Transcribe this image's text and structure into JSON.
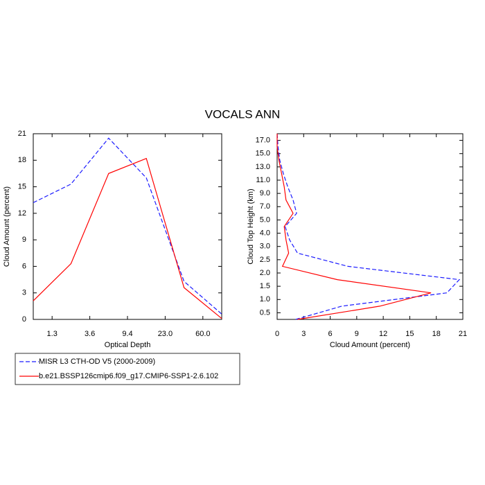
{
  "title": "VOCALS ANN",
  "chart_data": [
    {
      "type": "line",
      "orientation": "vertical",
      "xlabel": "Optical Depth",
      "ylabel": "Cloud Amount (percent)",
      "categories": [
        null,
        null,
        null,
        null,
        null,
        null
      ],
      "xlim": [
        0,
        5
      ],
      "xticks": [
        {
          "value": 0.5,
          "label": "1.3"
        },
        {
          "value": 1.5,
          "label": "3.6"
        },
        {
          "value": 2.5,
          "label": "9.4"
        },
        {
          "value": 3.5,
          "label": "23.0"
        },
        {
          "value": 4.5,
          "label": "60.0"
        }
      ],
      "ylim": [
        0,
        21
      ],
      "yticks": [
        0,
        3,
        6,
        9,
        12,
        15,
        18,
        21
      ],
      "series": [
        {
          "name": "MISR L3 CTH-OD V5 (2000-2009)",
          "color": "#1a1aff",
          "linestyle": "dashed",
          "values": [
            13.2,
            15.3,
            20.5,
            16.0,
            4.3,
            0.6
          ]
        },
        {
          "name": "b.e21.BSSP126cmip6.f09_g17.CMIP6-SSP1-2.6.102",
          "color": "#ff0000",
          "linestyle": "solid",
          "values": [
            2.1,
            6.3,
            16.5,
            18.2,
            3.6,
            0.1
          ]
        }
      ]
    },
    {
      "type": "line",
      "orientation": "horizontal",
      "xlabel": "Cloud Amount (percent)",
      "ylabel": "Cloud Top Height (km)",
      "categories": [
        null,
        null,
        null,
        null,
        null,
        null,
        null,
        null,
        null,
        null,
        null,
        null,
        null,
        null,
        null
      ],
      "xlim": [
        0,
        21
      ],
      "xticks": [
        0,
        3,
        6,
        9,
        12,
        15,
        18,
        21
      ],
      "ylim": [
        0,
        14
      ],
      "yticks": [
        {
          "value": 0.5,
          "label": "0.5"
        },
        {
          "value": 1.5,
          "label": "1.0"
        },
        {
          "value": 2.5,
          "label": "1.5"
        },
        {
          "value": 3.5,
          "label": "2.0"
        },
        {
          "value": 4.5,
          "label": "2.5"
        },
        {
          "value": 5.5,
          "label": "3.0"
        },
        {
          "value": 6.5,
          "label": "4.0"
        },
        {
          "value": 7.5,
          "label": "5.0"
        },
        {
          "value": 8.5,
          "label": "7.0"
        },
        {
          "value": 9.5,
          "label": "9.0"
        },
        {
          "value": 10.5,
          "label": "11.0"
        },
        {
          "value": 11.5,
          "label": "13.0"
        },
        {
          "value": 12.5,
          "label": "15.0"
        },
        {
          "value": 13.5,
          "label": "17.0"
        }
      ],
      "series": [
        {
          "color": "#1a1aff",
          "linestyle": "dashed",
          "values": [
            2.1,
            7.3,
            19.2,
            20.6,
            8.0,
            2.3,
            1.4,
            0.9,
            2.2,
            1.8,
            1.2,
            0.7,
            0.3,
            0.1,
            0.0
          ]
        },
        {
          "color": "#ff0000",
          "linestyle": "solid",
          "values": [
            2.3,
            11.6,
            17.4,
            6.8,
            0.6,
            1.3,
            1.0,
            0.8,
            1.8,
            1.0,
            0.8,
            0.5,
            0.2,
            0.0,
            0.0
          ]
        }
      ]
    }
  ]
}
